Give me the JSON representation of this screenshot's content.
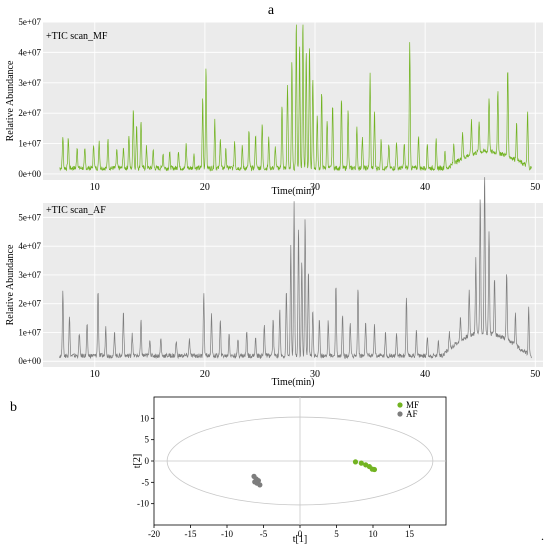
{
  "panel_a_label": "a",
  "panel_b_label": "b",
  "trailing_mark": ".",
  "colors": {
    "green": "#72b322",
    "gray": "#7d7d7d",
    "bg": "#ebebeb",
    "grid": "#ffffff"
  },
  "chart_data": [
    {
      "type": "line",
      "title": "+TIC scan_MF",
      "xlabel": "Time(min)",
      "ylabel": "Relative Abundance",
      "xlim": [
        5.3,
        50.7
      ],
      "ylim": [
        -2000000,
        50000000
      ],
      "xticks": [
        10,
        20,
        30,
        40,
        50
      ],
      "xtick_labels": [
        "10",
        "20",
        "30",
        "40",
        "50"
      ],
      "yticks": [
        0,
        10000000,
        20000000,
        30000000,
        40000000,
        50000000
      ],
      "ytick_labels": [
        "0e+00",
        "1e+07",
        "2e+07",
        "3e+07",
        "4e+07",
        "5e+07"
      ],
      "grid": true,
      "series": [
        {
          "color": "#72b322",
          "peaks": [
            [
              7.1,
              10500000.0
            ],
            [
              7.6,
              10000000.0
            ],
            [
              8.4,
              7000000.0
            ],
            [
              9.1,
              6000000.0
            ],
            [
              9.9,
              8000000.0
            ],
            [
              10.4,
              9000000.0
            ],
            [
              11.2,
              10000000.0
            ],
            [
              12.0,
              6000000.0
            ],
            [
              12.6,
              7000000.0
            ],
            [
              13.1,
              11000000.0
            ],
            [
              13.5,
              20000000.0
            ],
            [
              13.8,
              14000000.0
            ],
            [
              14.2,
              16000000.0
            ],
            [
              14.7,
              7000000.0
            ],
            [
              15.3,
              6000000.0
            ],
            [
              16.2,
              5000000.0
            ],
            [
              16.8,
              5000000.0
            ],
            [
              17.6,
              6000000.0
            ],
            [
              18.3,
              8000000.0
            ],
            [
              19.0,
              5000000.0
            ],
            [
              19.8,
              23000000.0
            ],
            [
              20.1,
              34000000.0
            ],
            [
              20.9,
              16000000.0
            ],
            [
              21.4,
              10000000.0
            ],
            [
              21.9,
              6000000.0
            ],
            [
              22.7,
              9000000.0
            ],
            [
              23.4,
              7000000.0
            ],
            [
              24.0,
              12000000.0
            ],
            [
              24.6,
              11000000.0
            ],
            [
              25.2,
              15000000.0
            ],
            [
              25.8,
              10000000.0
            ],
            [
              26.4,
              7000000.0
            ],
            [
              27.0,
              21000000.0
            ],
            [
              27.5,
              28000000.0
            ],
            [
              27.9,
              35000000.0
            ],
            [
              28.3,
              48000000.0
            ],
            [
              28.6,
              41000000.0
            ],
            [
              28.9,
              49000000.0
            ],
            [
              29.2,
              38000000.0
            ],
            [
              29.5,
              40000000.0
            ],
            [
              29.8,
              30000000.0
            ],
            [
              30.2,
              17000000.0
            ],
            [
              30.6,
              25000000.0
            ],
            [
              31.1,
              16000000.0
            ],
            [
              31.6,
              21000000.0
            ],
            [
              32.4,
              23000000.0
            ],
            [
              33.0,
              19000000.0
            ],
            [
              33.8,
              13000000.0
            ],
            [
              34.3,
              10000000.0
            ],
            [
              35.0,
              31000000.0
            ],
            [
              35.4,
              19000000.0
            ],
            [
              36.0,
              10000000.0
            ],
            [
              36.7,
              8000000.0
            ],
            [
              37.4,
              9000000.0
            ],
            [
              38.1,
              8000000.0
            ],
            [
              38.6,
              41000000.0
            ],
            [
              39.4,
              11000000.0
            ],
            [
              40.2,
              8000000.0
            ],
            [
              41.0,
              9000000.0
            ],
            [
              41.8,
              6000000.0
            ],
            [
              42.6,
              7000000.0
            ],
            [
              43.4,
              9000000.0
            ],
            [
              44.2,
              11000000.0
            ],
            [
              44.9,
              10000000.0
            ],
            [
              45.8,
              18000000.0
            ],
            [
              46.6,
              20000000.0
            ],
            [
              47.5,
              29000000.0
            ],
            [
              48.3,
              12000000.0
            ],
            [
              49.3,
              18000000.0
            ]
          ],
          "hump": {
            "start": 42,
            "peak": 45.5,
            "end": 49.6,
            "height": 5500000.0
          }
        }
      ]
    },
    {
      "type": "line",
      "title": "+TIC scan_AF",
      "xlabel": "Time(min)",
      "ylabel": "Relative Abundance",
      "xlim": [
        5.3,
        50.7
      ],
      "ylim": [
        -2000000,
        55000000
      ],
      "xticks": [
        10,
        20,
        30,
        40,
        50
      ],
      "xtick_labels": [
        "10",
        "20",
        "30",
        "40",
        "50"
      ],
      "yticks": [
        0,
        10000000,
        20000000,
        30000000,
        40000000,
        50000000
      ],
      "ytick_labels": [
        "0e+00",
        "1e+07",
        "2e+07",
        "3e+07",
        "4e+07",
        "5e+07"
      ],
      "grid": true,
      "series": [
        {
          "color": "#7d7d7d",
          "peaks": [
            [
              7.1,
              22000000.0
            ],
            [
              7.7,
              14000000.0
            ],
            [
              8.6,
              8000000.0
            ],
            [
              9.3,
              11000000.0
            ],
            [
              10.3,
              23000000.0
            ],
            [
              11.0,
              10000000.0
            ],
            [
              11.8,
              8000000.0
            ],
            [
              12.6,
              16000000.0
            ],
            [
              13.4,
              8000000.0
            ],
            [
              14.2,
              12000000.0
            ],
            [
              15.0,
              6000000.0
            ],
            [
              16.0,
              6000000.0
            ],
            [
              17.4,
              5000000.0
            ],
            [
              18.6,
              6000000.0
            ],
            [
              19.9,
              22000000.0
            ],
            [
              20.6,
              14000000.0
            ],
            [
              21.4,
              12000000.0
            ],
            [
              22.2,
              8000000.0
            ],
            [
              23.0,
              6000000.0
            ],
            [
              23.8,
              9000000.0
            ],
            [
              24.6,
              6000000.0
            ],
            [
              25.4,
              11000000.0
            ],
            [
              26.2,
              13000000.0
            ],
            [
              26.8,
              16000000.0
            ],
            [
              27.4,
              23000000.0
            ],
            [
              27.8,
              38000000.0
            ],
            [
              28.1,
              54000000.0
            ],
            [
              28.5,
              45000000.0
            ],
            [
              28.8,
              33000000.0
            ],
            [
              29.1,
              48000000.0
            ],
            [
              29.4,
              30000000.0
            ],
            [
              29.8,
              16000000.0
            ],
            [
              30.4,
              13000000.0
            ],
            [
              31.2,
              12000000.0
            ],
            [
              31.9,
              25000000.0
            ],
            [
              32.5,
              15000000.0
            ],
            [
              33.2,
              11000000.0
            ],
            [
              33.9,
              24000000.0
            ],
            [
              34.6,
              12000000.0
            ],
            [
              35.4,
              11000000.0
            ],
            [
              36.4,
              8000000.0
            ],
            [
              37.4,
              7000000.0
            ],
            [
              38.3,
              20000000.0
            ],
            [
              39.2,
              9000000.0
            ],
            [
              40.2,
              7000000.0
            ],
            [
              41.2,
              6000000.0
            ],
            [
              42.2,
              6000000.0
            ],
            [
              43.2,
              8000000.0
            ],
            [
              44.0,
              16000000.0
            ],
            [
              44.6,
              26000000.0
            ],
            [
              45.0,
              48000000.0
            ],
            [
              45.4,
              55000000.0
            ],
            [
              45.8,
              36000000.0
            ],
            [
              46.3,
              20000000.0
            ],
            [
              47.4,
              23000000.0
            ],
            [
              48.2,
              11000000.0
            ],
            [
              49.4,
              17000000.0
            ]
          ],
          "hump": {
            "start": 41.5,
            "peak": 45.2,
            "end": 49.5,
            "height": 8000000.0
          }
        }
      ]
    },
    {
      "type": "scatter",
      "xlabel": "t[1]",
      "ylabel": "t[2]",
      "xlim": [
        -20,
        20
      ],
      "ylim": [
        -15,
        15
      ],
      "xticks": [
        -20,
        -15,
        -10,
        -5,
        0,
        5,
        10,
        15
      ],
      "xtick_labels": [
        "-20",
        "-15",
        "-10",
        "-5",
        "0",
        "5",
        "10",
        "15"
      ],
      "yticks": [
        -10,
        -5,
        0,
        5,
        10
      ],
      "ytick_labels": [
        "-10",
        "-5",
        "0",
        "5",
        "10"
      ],
      "grid": false,
      "legend_position": "top-right",
      "ellipse": {
        "cx": 0,
        "cy": 0,
        "rx": 18.2,
        "ry": 10.3
      },
      "series": [
        {
          "name": "MF",
          "color": "#72b322",
          "points": [
            [
              7.6,
              -0.2
            ],
            [
              8.4,
              -0.5
            ],
            [
              9.0,
              -0.9
            ],
            [
              9.5,
              -1.3
            ],
            [
              9.9,
              -1.9
            ],
            [
              10.2,
              -2.0
            ]
          ]
        },
        {
          "name": "AF",
          "color": "#7d7d7d",
          "points": [
            [
              -6.3,
              -3.6
            ],
            [
              -6.0,
              -4.2
            ],
            [
              -5.7,
              -4.6
            ],
            [
              -5.9,
              -5.2
            ],
            [
              -5.5,
              -5.6
            ],
            [
              -6.2,
              -4.9
            ]
          ]
        }
      ]
    }
  ]
}
